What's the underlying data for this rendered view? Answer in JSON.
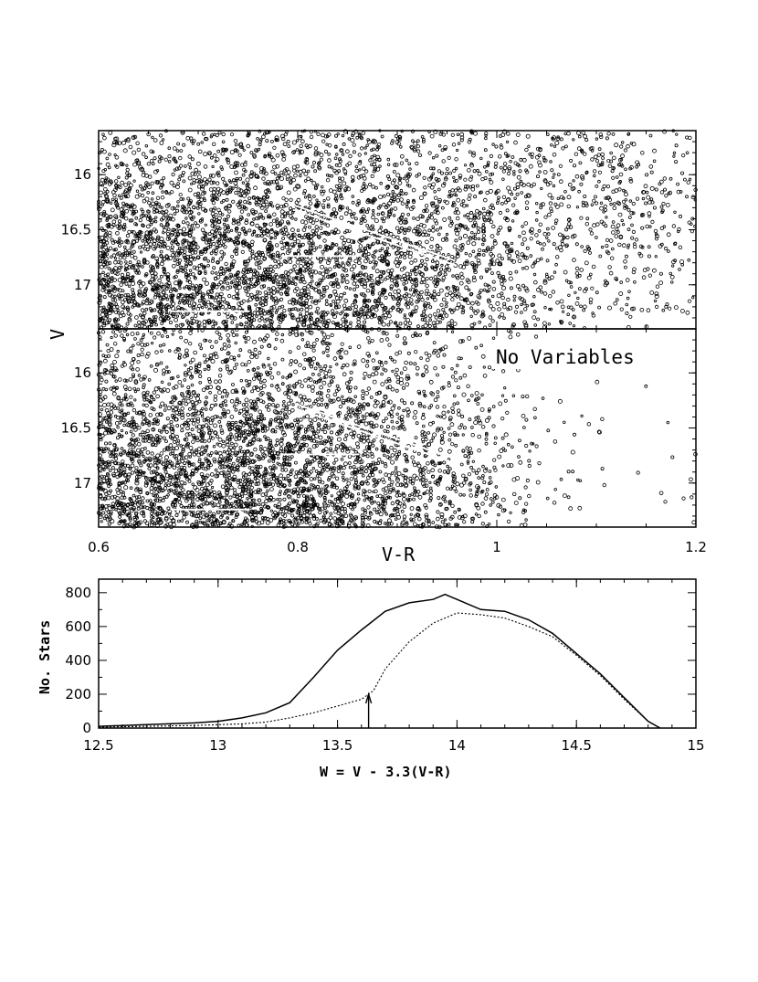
{
  "chart_data": [
    {
      "type": "scatter",
      "panel": "upper",
      "xlim": [
        0.6,
        1.2
      ],
      "ylim": [
        17.4,
        15.6
      ],
      "yticks": [
        "16",
        "16.5",
        "17"
      ],
      "ylabel": "V",
      "annotation": "",
      "density": {
        "rows": [
          15.8,
          16.2,
          16.6,
          17.0,
          17.3
        ],
        "cols": [
          0.65,
          0.75,
          0.85,
          0.95,
          1.05,
          1.15
        ],
        "relative": [
          [
            0.4,
            0.45,
            0.4,
            0.3,
            0.25,
            0.2
          ],
          [
            0.6,
            0.6,
            0.55,
            0.45,
            0.3,
            0.25
          ],
          [
            0.9,
            0.9,
            0.8,
            0.6,
            0.3,
            0.2
          ],
          [
            1.0,
            1.0,
            0.9,
            0.7,
            0.25,
            0.15
          ],
          [
            1.0,
            1.0,
            0.9,
            0.6,
            0.2,
            0.1
          ]
        ]
      },
      "lines": [
        {
          "x": [
            0.672,
            0.752
          ],
          "y": [
            17.24,
            17.24
          ]
        },
        {
          "x": [
            0.783,
            0.862
          ],
          "y": [
            16.74,
            16.74
          ]
        },
        {
          "x": [
            0.797,
            0.958
          ],
          "y": [
            16.28,
            16.78
          ]
        }
      ]
    },
    {
      "type": "scatter",
      "panel": "lower",
      "xlim": [
        0.6,
        1.2
      ],
      "ylim": [
        17.4,
        15.6
      ],
      "yticks": [
        "16",
        "16.5",
        "17"
      ],
      "ylabel": "",
      "annotation": "No Variables",
      "density": {
        "rows": [
          15.8,
          16.2,
          16.6,
          17.0,
          17.3
        ],
        "cols": [
          0.65,
          0.75,
          0.85,
          0.95,
          1.05,
          1.15
        ],
        "relative": [
          [
            0.3,
            0.3,
            0.25,
            0.1,
            0.02,
            0.0
          ],
          [
            0.5,
            0.5,
            0.45,
            0.15,
            0.03,
            0.01
          ],
          [
            0.85,
            0.85,
            0.7,
            0.3,
            0.03,
            0.01
          ],
          [
            1.0,
            1.0,
            0.85,
            0.45,
            0.04,
            0.02
          ],
          [
            1.0,
            1.0,
            0.85,
            0.45,
            0.05,
            0.02
          ]
        ]
      },
      "lines": [
        {
          "x": [
            0.672,
            0.752
          ],
          "y": [
            17.24,
            17.24
          ]
        },
        {
          "x": [
            0.783,
            0.862
          ],
          "y": [
            16.74,
            16.74
          ]
        },
        {
          "x": [
            0.797,
            0.958
          ],
          "y": [
            16.28,
            16.78
          ]
        }
      ]
    },
    {
      "type": "line",
      "panel": "histogram",
      "xlim": [
        12.5,
        15
      ],
      "ylim": [
        0,
        880
      ],
      "xticks": [
        "12.5",
        "13",
        "13.5",
        "14",
        "14.5",
        "15"
      ],
      "yticks": [
        "0",
        "200",
        "400",
        "600",
        "800"
      ],
      "xlabel": "W = V - 3.3(V-R)",
      "ylabel": "No. Stars",
      "series": [
        {
          "style": "solid",
          "x": [
            12.5,
            12.7,
            12.9,
            13.0,
            13.1,
            13.2,
            13.3,
            13.4,
            13.5,
            13.6,
            13.7,
            13.8,
            13.9,
            13.95,
            14.0,
            14.1,
            14.2,
            14.3,
            14.4,
            14.5,
            14.6,
            14.7,
            14.8,
            14.85
          ],
          "y": [
            10,
            20,
            30,
            40,
            60,
            90,
            150,
            300,
            460,
            580,
            690,
            740,
            760,
            790,
            760,
            700,
            690,
            640,
            560,
            440,
            320,
            180,
            40,
            0
          ]
        },
        {
          "style": "dotted",
          "x": [
            12.5,
            12.7,
            12.9,
            13.0,
            13.1,
            13.2,
            13.3,
            13.4,
            13.5,
            13.6,
            13.65,
            13.7,
            13.8,
            13.9,
            14.0,
            14.1,
            14.2,
            14.3,
            14.4,
            14.5,
            14.6,
            14.7,
            14.8,
            14.85
          ],
          "y": [
            5,
            10,
            15,
            20,
            25,
            35,
            60,
            90,
            130,
            170,
            220,
            350,
            510,
            620,
            680,
            670,
            650,
            600,
            540,
            430,
            310,
            170,
            40,
            0
          ]
        }
      ],
      "arrow": {
        "x": 13.63,
        "y_from": 0,
        "y_to": 200
      }
    }
  ],
  "shared_x_axis": {
    "ticks": [
      "0.6",
      "0.8",
      "1",
      "1.2"
    ],
    "label": "V-R"
  }
}
